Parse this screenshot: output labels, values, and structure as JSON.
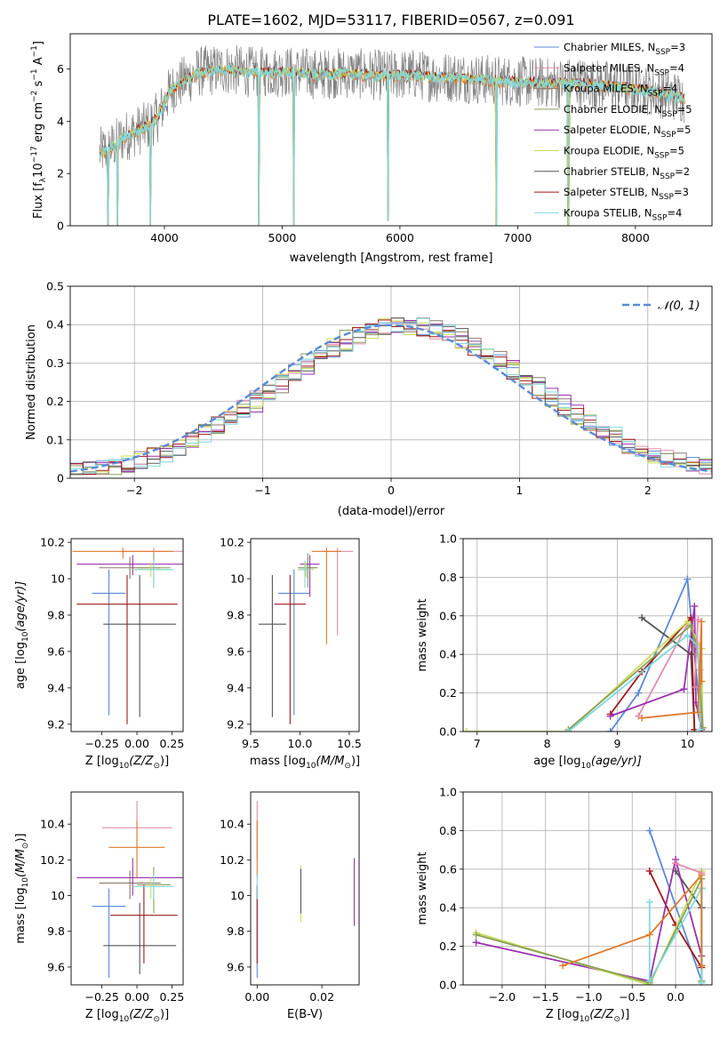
{
  "figure_title": "PLATE=1602, MJD=53117, FIBERID=0567, z=0.091",
  "colors": {
    "Chabrier MILES": "#5b8ad6",
    "Salpeter MILES": "#e58ca8",
    "Kroupa MILES": "#8c7a6b",
    "Chabrier ELODIE": "#8aa05a",
    "Salpeter ELODIE": "#9b30b0",
    "Kroupa ELODIE": "#c9dc55",
    "Chabrier STELIB": "#555555",
    "Salpeter STELIB": "#a01818",
    "Kroupa STELIB": "#7fd8dc",
    "orange_extra": "#e07a2a",
    "normal_curve": "#5b8ad6"
  },
  "chart_data": [
    {
      "id": "spectrum",
      "type": "line",
      "xlabel": "wavelength [Angstrom, rest frame]",
      "ylabel": "Flux [f",
      "ylabel_parts": [
        "Flux [f",
        "λ",
        "10",
        "−17",
        " erg cm",
        "−2",
        " s",
        "−1",
        " A",
        "−1",
        "]"
      ],
      "xlim": [
        3200,
        8650
      ],
      "ylim": [
        0,
        7.35
      ],
      "xticks": [
        4000,
        5000,
        6000,
        7000,
        8000
      ],
      "yticks": [
        0,
        2,
        4,
        6
      ],
      "legend_position": "upper-right",
      "legend": [
        {
          "label": "Chabrier MILES, N",
          "sub": "SSP",
          "suffix": "=3",
          "color": "Chabrier MILES"
        },
        {
          "label": "Salpeter MILES, N",
          "sub": "SSP",
          "suffix": "=4",
          "color": "Salpeter MILES"
        },
        {
          "label": "Kroupa MILES, N",
          "sub": "SSP",
          "suffix": "=4",
          "color": "Kroupa MILES"
        },
        {
          "label": "Chabrier ELODIE, N",
          "sub": "SSP",
          "suffix": "=5",
          "color": "Chabrier ELODIE"
        },
        {
          "label": "Salpeter ELODIE, N",
          "sub": "SSP",
          "suffix": "=5",
          "color": "Salpeter ELODIE"
        },
        {
          "label": "Kroupa ELODIE, N",
          "sub": "SSP",
          "suffix": "=5",
          "color": "Kroupa ELODIE"
        },
        {
          "label": "Chabrier STELIB, N",
          "sub": "SSP",
          "suffix": "=2",
          "color": "Chabrier STELIB"
        },
        {
          "label": "Salpeter STELIB, N",
          "sub": "SSP",
          "suffix": "=3",
          "color": "Salpeter STELIB"
        },
        {
          "label": "Kroupa STELIB, N",
          "sub": "SSP",
          "suffix": "=4",
          "color": "Kroupa STELIB"
        }
      ],
      "continuum": {
        "x": [
          3450,
          3550,
          3650,
          3750,
          3850,
          3950,
          4050,
          4150,
          4300,
          4500,
          4700,
          4900,
          5100,
          5300,
          5500,
          5700,
          5900,
          6100,
          6300,
          6500,
          6700,
          6900,
          7100,
          7300,
          7500,
          7700,
          7900,
          8100,
          8300,
          8420
        ],
        "y": [
          2.8,
          3.0,
          3.4,
          3.6,
          3.8,
          4.2,
          5.2,
          5.5,
          5.9,
          6.0,
          5.9,
          5.9,
          5.9,
          5.8,
          5.85,
          5.8,
          5.75,
          5.8,
          5.7,
          5.7,
          5.6,
          5.55,
          5.5,
          5.45,
          5.5,
          5.4,
          5.3,
          5.2,
          5.0,
          4.9
        ]
      },
      "noise_amplitude": 0.9,
      "dips": [
        {
          "x": 3520,
          "y": 0
        },
        {
          "x": 3600,
          "y": 0
        },
        {
          "x": 3880,
          "y": 0
        },
        {
          "x": 4800,
          "y": 0
        },
        {
          "x": 5100,
          "y": 0
        },
        {
          "x": 5900,
          "y": 0.2
        },
        {
          "x": 6820,
          "y": 0
        },
        {
          "x": 7430,
          "y": 0
        }
      ]
    },
    {
      "id": "residuals",
      "type": "histogram",
      "xlabel": "(data-model)/error",
      "ylabel": "Normed distribution",
      "xlim": [
        -2.5,
        2.5
      ],
      "ylim": [
        0,
        0.5
      ],
      "xticks": [
        -2,
        -1,
        0,
        1,
        2
      ],
      "yticks": [
        0.0,
        0.1,
        0.2,
        0.3,
        0.4,
        0.5
      ],
      "grid": true,
      "legend_position": "upper-right",
      "legend": [
        {
          "label": "𝒩(0, 1)",
          "color": "normal_curve",
          "style": "dashed"
        }
      ],
      "bin_width": 0.1,
      "bin_start": -2.5,
      "series_offsets": [
        0.0,
        0.015,
        -0.012,
        0.02,
        -0.018,
        0.01,
        -0.008,
        0.025,
        -0.02
      ],
      "series_colors": [
        "Chabrier MILES",
        "Salpeter MILES",
        "Kroupa MILES",
        "Chabrier ELODIE",
        "Salpeter ELODIE",
        "Kroupa ELODIE",
        "Chabrier STELIB",
        "Salpeter STELIB",
        "Kroupa STELIB"
      ]
    },
    {
      "id": "z-age",
      "type": "errorbar",
      "xlabel": "Z [log",
      "xlabel_parts": [
        "Z [log",
        "10",
        "(Z/Z",
        "⊙",
        ")]"
      ],
      "ylabel_parts": [
        "age  [log",
        "10",
        "(age/yr)]"
      ],
      "xlim": [
        -0.47,
        0.33
      ],
      "ylim": [
        9.16,
        10.22
      ],
      "xticks": [
        -0.25,
        0.0,
        0.25
      ],
      "xticklabels": [
        "−0.25",
        "0.00",
        "0.25"
      ],
      "yticks": [
        9.2,
        9.4,
        9.6,
        9.8,
        10.0,
        10.2
      ],
      "points": [
        {
          "x": -0.2,
          "xerr": 0.12,
          "y": 9.92,
          "ylo": 9.25,
          "yhi": 10.05,
          "c": "Chabrier MILES"
        },
        {
          "x": 0.12,
          "xerr": 0.23,
          "y": 10.15,
          "ylo": 10.12,
          "yhi": 10.17,
          "c": "Salpeter MILES"
        },
        {
          "x": -0.05,
          "xerr": 0.22,
          "y": 10.06,
          "ylo": 10.0,
          "yhi": 10.12,
          "c": "Kroupa MILES"
        },
        {
          "x": 0.12,
          "xerr": 0.12,
          "y": 10.06,
          "ylo": 9.95,
          "yhi": 10.14,
          "c": "Chabrier ELODIE"
        },
        {
          "x": -0.03,
          "xerr": 0.4,
          "y": 10.08,
          "ylo": 10.02,
          "yhi": 10.13,
          "c": "Salpeter ELODIE"
        },
        {
          "x": 0.1,
          "xerr": 0.13,
          "y": 10.05,
          "ylo": 10.01,
          "yhi": 10.09,
          "c": "Kroupa ELODIE"
        },
        {
          "x": 0.02,
          "xerr": 0.26,
          "y": 9.75,
          "ylo": 9.24,
          "yhi": 10.02,
          "c": "Chabrier STELIB"
        },
        {
          "x": -0.07,
          "xerr": 0.36,
          "y": 9.86,
          "ylo": 9.2,
          "yhi": 10.02,
          "c": "Salpeter STELIB"
        },
        {
          "x": 0.12,
          "xerr": 0.14,
          "y": 10.05,
          "ylo": 9.95,
          "yhi": 10.1,
          "c": "Kroupa STELIB"
        },
        {
          "x": -0.1,
          "xerr": 0.36,
          "y": 10.15,
          "ylo": 10.11,
          "yhi": 10.17,
          "c": "orange_extra"
        }
      ]
    },
    {
      "id": "mass-age",
      "type": "errorbar",
      "xlabel_parts": [
        "mass [log",
        "10",
        "(M/M",
        "⊙",
        ")]"
      ],
      "xlim": [
        9.5,
        10.6
      ],
      "ylim": [
        9.16,
        10.22
      ],
      "xticks": [
        9.5,
        10.0,
        10.5
      ],
      "xticklabels": [
        "9.5",
        "10.0",
        "10.5"
      ],
      "yticks": [
        9.2,
        9.4,
        9.6,
        9.8,
        10.0,
        10.2
      ],
      "points": [
        {
          "x": 9.94,
          "xerr": 0.16,
          "y": 9.92,
          "ylo": 9.25,
          "yhi": 10.05,
          "c": "Chabrier MILES"
        },
        {
          "x": 10.38,
          "xerr": 0.16,
          "y": 10.15,
          "ylo": 9.69,
          "yhi": 10.17,
          "c": "Salpeter MILES"
        },
        {
          "x": 10.08,
          "xerr": 0.1,
          "y": 10.06,
          "ylo": 10.0,
          "yhi": 10.12,
          "c": "Kroupa MILES"
        },
        {
          "x": 10.08,
          "xerr": 0.08,
          "y": 10.06,
          "ylo": 9.95,
          "yhi": 10.14,
          "c": "Chabrier ELODIE"
        },
        {
          "x": 10.1,
          "xerr": 0.1,
          "y": 10.08,
          "ylo": 9.9,
          "yhi": 10.13,
          "c": "Salpeter ELODIE"
        },
        {
          "x": 10.06,
          "xerr": 0.08,
          "y": 10.05,
          "ylo": 10.01,
          "yhi": 10.09,
          "c": "Kroupa ELODIE"
        },
        {
          "x": 9.72,
          "xerr": 0.14,
          "y": 9.75,
          "ylo": 9.24,
          "yhi": 10.02,
          "c": "Chabrier STELIB"
        },
        {
          "x": 9.9,
          "xerr": 0.16,
          "y": 9.86,
          "ylo": 9.2,
          "yhi": 10.02,
          "c": "Salpeter STELIB"
        },
        {
          "x": 10.05,
          "xerr": 0.06,
          "y": 10.05,
          "ylo": 9.95,
          "yhi": 10.1,
          "c": "Kroupa STELIB"
        },
        {
          "x": 10.27,
          "xerr": 0.15,
          "y": 10.15,
          "ylo": 9.64,
          "yhi": 10.17,
          "c": "orange_extra"
        }
      ]
    },
    {
      "id": "age-weight",
      "type": "line",
      "xlabel_parts": [
        "age  [log",
        "10",
        "(age/yr)]"
      ],
      "ylabel": "mass weight",
      "xlim": [
        6.8,
        10.35
      ],
      "ylim": [
        0,
        1.0
      ],
      "xticks": [
        7,
        8,
        9,
        10
      ],
      "yticks": [
        0.0,
        0.2,
        0.4,
        0.6,
        0.8,
        1.0
      ],
      "yticklabels": [
        "0.0",
        "0.2",
        "0.4",
        "0.6",
        "0.8",
        "1.0"
      ],
      "grid": true,
      "series": [
        {
          "c": "Chabrier MILES",
          "x": [
            8.9,
            9.3,
            10.0,
            10.2
          ],
          "y": [
            0.0,
            0.2,
            0.79,
            0.01
          ]
        },
        {
          "c": "Salpeter MILES",
          "x": [
            9.3,
            10.05,
            10.18,
            10.2
          ],
          "y": [
            0.08,
            0.59,
            0.32,
            0.01
          ]
        },
        {
          "c": "Chabrier STELIB",
          "x": [
            9.35,
            10.05,
            10.1
          ],
          "y": [
            0.59,
            0.4,
            0.01
          ]
        },
        {
          "c": "Salpeter STELIB",
          "x": [
            8.9,
            9.35,
            10.05,
            10.1
          ],
          "y": [
            0.09,
            0.31,
            0.59,
            0.01
          ]
        },
        {
          "c": "Salpeter ELODIE",
          "x": [
            8.9,
            9.95,
            10.1,
            10.12,
            10.2
          ],
          "y": [
            0.08,
            0.22,
            0.65,
            0.15,
            0.01
          ]
        },
        {
          "c": "Kroupa ELODIE",
          "x": [
            6.85,
            8.3,
            10.0,
            10.2,
            10.22
          ],
          "y": [
            0.0,
            0.0,
            0.57,
            0.43,
            0.02
          ]
        },
        {
          "c": "Chabrier ELODIE",
          "x": [
            8.3,
            10.05,
            10.15,
            10.22
          ],
          "y": [
            0.01,
            0.55,
            0.4,
            0.02
          ]
        },
        {
          "c": "Kroupa STELIB",
          "x": [
            8.3,
            10.0,
            10.15,
            10.18
          ],
          "y": [
            0.0,
            0.5,
            0.44,
            0.01
          ]
        },
        {
          "c": "orange_extra",
          "x": [
            9.35,
            10.15,
            10.2,
            10.2
          ],
          "y": [
            0.07,
            0.1,
            0.57,
            0.26
          ]
        },
        {
          "c": "Salpeter MILES",
          "x": [
            10.1,
            10.15
          ],
          "y": [
            0.23,
            0.58
          ]
        }
      ]
    },
    {
      "id": "z-mass",
      "type": "errorbar",
      "xlabel_parts": [
        "Z [log",
        "10",
        "(Z/Z",
        "⊙",
        ")]"
      ],
      "ylabel_parts": [
        "mass [log",
        "10",
        "(M/M",
        "⊙",
        ")]"
      ],
      "xlim": [
        -0.47,
        0.33
      ],
      "ylim": [
        9.5,
        10.58
      ],
      "xticks": [
        -0.25,
        0.0,
        0.25
      ],
      "xticklabels": [
        "−0.25",
        "0.00",
        "0.25"
      ],
      "yticks": [
        9.6,
        9.8,
        10.0,
        10.2,
        10.4
      ],
      "points": [
        {
          "x": -0.2,
          "xerr": 0.12,
          "y": 9.94,
          "ylo": 9.54,
          "yhi": 10.04,
          "c": "Chabrier MILES"
        },
        {
          "x": 0.0,
          "xerr": 0.25,
          "y": 10.38,
          "ylo": 10.2,
          "yhi": 10.53,
          "c": "Salpeter MILES"
        },
        {
          "x": -0.05,
          "xerr": 0.22,
          "y": 10.07,
          "ylo": 9.98,
          "yhi": 10.14,
          "c": "Kroupa MILES"
        },
        {
          "x": 0.12,
          "xerr": 0.12,
          "y": 10.06,
          "ylo": 9.9,
          "yhi": 10.16,
          "c": "Chabrier ELODIE"
        },
        {
          "x": -0.03,
          "xerr": 0.4,
          "y": 10.1,
          "ylo": 10.0,
          "yhi": 10.21,
          "c": "Salpeter ELODIE"
        },
        {
          "x": 0.1,
          "xerr": 0.13,
          "y": 10.05,
          "ylo": 9.98,
          "yhi": 10.1,
          "c": "Kroupa ELODIE"
        },
        {
          "x": 0.02,
          "xerr": 0.26,
          "y": 9.72,
          "ylo": 9.56,
          "yhi": 9.96,
          "c": "Chabrier STELIB"
        },
        {
          "x": 0.05,
          "xerr": 0.24,
          "y": 9.89,
          "ylo": 9.62,
          "yhi": 10.06,
          "c": "Salpeter STELIB"
        },
        {
          "x": 0.12,
          "xerr": 0.14,
          "y": 10.05,
          "ylo": 9.98,
          "yhi": 10.12,
          "c": "Kroupa STELIB"
        },
        {
          "x": 0.0,
          "xerr": 0.2,
          "y": 10.27,
          "ylo": 10.1,
          "yhi": 10.42,
          "c": "orange_extra"
        }
      ]
    },
    {
      "id": "ebv-mass",
      "type": "errorbar",
      "xlabel": "E(B-V)",
      "xlim": [
        -0.002,
        0.0315
      ],
      "ylim": [
        9.5,
        10.58
      ],
      "xticks": [
        0.0,
        0.02
      ],
      "xticklabels": [
        "0.00",
        "0.02"
      ],
      "yticks": [
        9.6,
        9.8,
        10.0,
        10.2,
        10.4
      ],
      "points": [
        {
          "x": 0.0,
          "y": 9.94,
          "ylo": 9.54,
          "yhi": 10.04,
          "c": "Chabrier MILES"
        },
        {
          "x": 0.0,
          "y": 10.38,
          "ylo": 10.2,
          "yhi": 10.53,
          "c": "Salpeter MILES"
        },
        {
          "x": 0.0,
          "y": 10.27,
          "ylo": 10.1,
          "yhi": 10.42,
          "c": "orange_extra"
        },
        {
          "x": 0.0,
          "y": 9.89,
          "ylo": 9.62,
          "yhi": 10.06,
          "c": "Salpeter STELIB"
        },
        {
          "x": 0.0,
          "y": 10.05,
          "ylo": 9.98,
          "yhi": 10.12,
          "c": "Kroupa STELIB"
        },
        {
          "x": 0.0135,
          "y": 10.06,
          "ylo": 9.85,
          "yhi": 10.17,
          "c": "Kroupa ELODIE"
        },
        {
          "x": 0.0135,
          "y": 10.05,
          "ylo": 9.9,
          "yhi": 10.15,
          "c": "Chabrier STELIB"
        },
        {
          "x": 0.03,
          "y": 10.1,
          "ylo": 9.83,
          "yhi": 10.21,
          "c": "Salpeter ELODIE"
        }
      ]
    },
    {
      "id": "z-weight",
      "type": "line",
      "xlabel_parts": [
        "Z [log",
        "10",
        "(Z/Z",
        "⊙",
        ")]"
      ],
      "ylabel": "mass weight",
      "xlim": [
        -2.45,
        0.42
      ],
      "ylim": [
        0,
        1.0
      ],
      "xticks": [
        -2.0,
        -1.5,
        -1.0,
        -0.5,
        0.0
      ],
      "xticklabels": [
        "−2.0",
        "−1.5",
        "−1.0",
        "−0.5",
        "0.0"
      ],
      "yticks": [
        0.0,
        0.2,
        0.4,
        0.6,
        0.8,
        1.0
      ],
      "yticklabels": [
        "0.0",
        "0.2",
        "0.4",
        "0.6",
        "0.8",
        "1.0"
      ],
      "grid": true,
      "series": [
        {
          "c": "Chabrier MILES",
          "x": [
            -0.3,
            0.3,
            0.3
          ],
          "y": [
            0.8,
            0.02,
            0.5
          ]
        },
        {
          "c": "Salpeter STELIB",
          "x": [
            -0.3,
            0.0,
            0.3,
            0.3
          ],
          "y": [
            0.59,
            0.31,
            0.09,
            0.1
          ]
        },
        {
          "c": "Chabrier STELIB",
          "x": [
            0.0,
            0.3,
            0.3
          ],
          "y": [
            0.59,
            0.4,
            0.4
          ]
        },
        {
          "c": "Salpeter ELODIE",
          "x": [
            -2.3,
            -0.3,
            0.0,
            0.3
          ],
          "y": [
            0.22,
            0.02,
            0.65,
            0.15
          ]
        },
        {
          "c": "Kroupa ELODIE",
          "x": [
            -2.3,
            -0.3,
            0.3,
            0.3
          ],
          "y": [
            0.27,
            0.0,
            0.59,
            0.02
          ]
        },
        {
          "c": "Chabrier ELODIE",
          "x": [
            -2.3,
            -0.3,
            0.3,
            0.3
          ],
          "y": [
            0.26,
            0.01,
            0.55,
            0.02
          ]
        },
        {
          "c": "Kroupa STELIB",
          "x": [
            -0.3,
            -0.3,
            0.3,
            0.3
          ],
          "y": [
            0.43,
            0.02,
            0.5,
            0.01
          ]
        },
        {
          "c": "orange_extra",
          "x": [
            -1.3,
            -0.3,
            0.3,
            0.3
          ],
          "y": [
            0.1,
            0.26,
            0.57,
            0.1
          ]
        },
        {
          "c": "Salpeter MILES",
          "x": [
            0.0,
            0.3
          ],
          "y": [
            0.63,
            0.58
          ]
        }
      ]
    }
  ]
}
